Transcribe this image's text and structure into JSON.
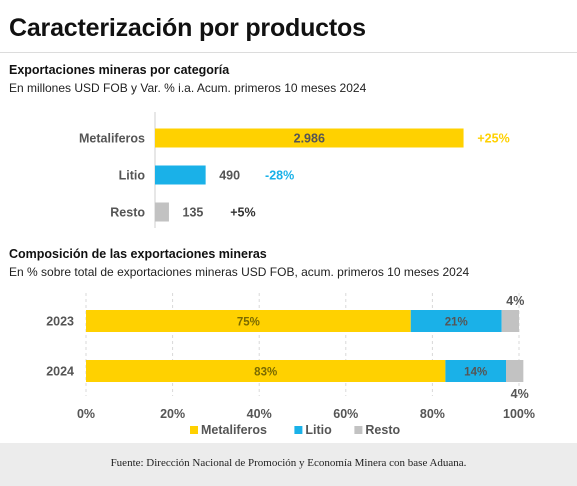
{
  "page": {
    "title": "Caracterización por productos"
  },
  "colors": {
    "metaliferos": "#FFD100",
    "litio": "#1AB1E8",
    "resto": "#C2C2C2",
    "axis": "#cfcfcf",
    "grid": "#d9d9d9"
  },
  "chart_data": [
    {
      "type": "bar",
      "orientation": "horizontal",
      "title": "Exportaciones mineras por categoría",
      "subtitle": "En millones USD FOB y Var. % i.a. Acum. primeros 10 meses 2024",
      "categories": [
        "Metaliferos",
        "Litio",
        "Resto"
      ],
      "values": [
        2986,
        490,
        135
      ],
      "value_labels": [
        "2.986",
        "490",
        "135"
      ],
      "variation_labels": [
        "+25%",
        "-28%",
        "+5%"
      ],
      "variation_colors": [
        "#FFD100",
        "#1AB1E8",
        "#333333"
      ],
      "xlim": [
        0,
        3000
      ],
      "grid": false
    },
    {
      "type": "bar",
      "orientation": "horizontal",
      "stacked": true,
      "title": "Composición de las exportaciones mineras",
      "subtitle": "En % sobre total de exportaciones mineras USD FOB, acum. primeros 10 meses 2024",
      "categories": [
        "2023",
        "2024"
      ],
      "series": [
        {
          "name": "Metaliferos",
          "values": [
            75,
            83
          ],
          "labels": [
            "75%",
            "83%"
          ]
        },
        {
          "name": "Litio",
          "values": [
            21,
            14
          ],
          "labels": [
            "21%",
            "14%"
          ]
        },
        {
          "name": "Resto",
          "values": [
            4,
            4
          ],
          "labels": [
            "4%",
            "4%"
          ]
        }
      ],
      "xlim": [
        0,
        100
      ],
      "xticks": [
        0,
        20,
        40,
        60,
        80,
        100
      ],
      "xtick_labels": [
        "0%",
        "20%",
        "40%",
        "60%",
        "80%",
        "100%"
      ],
      "grid": true,
      "legend": "bottom-center"
    }
  ],
  "footer": {
    "source": "Fuente: Dirección Nacional de Promoción y Economía Minera con base Aduana."
  }
}
